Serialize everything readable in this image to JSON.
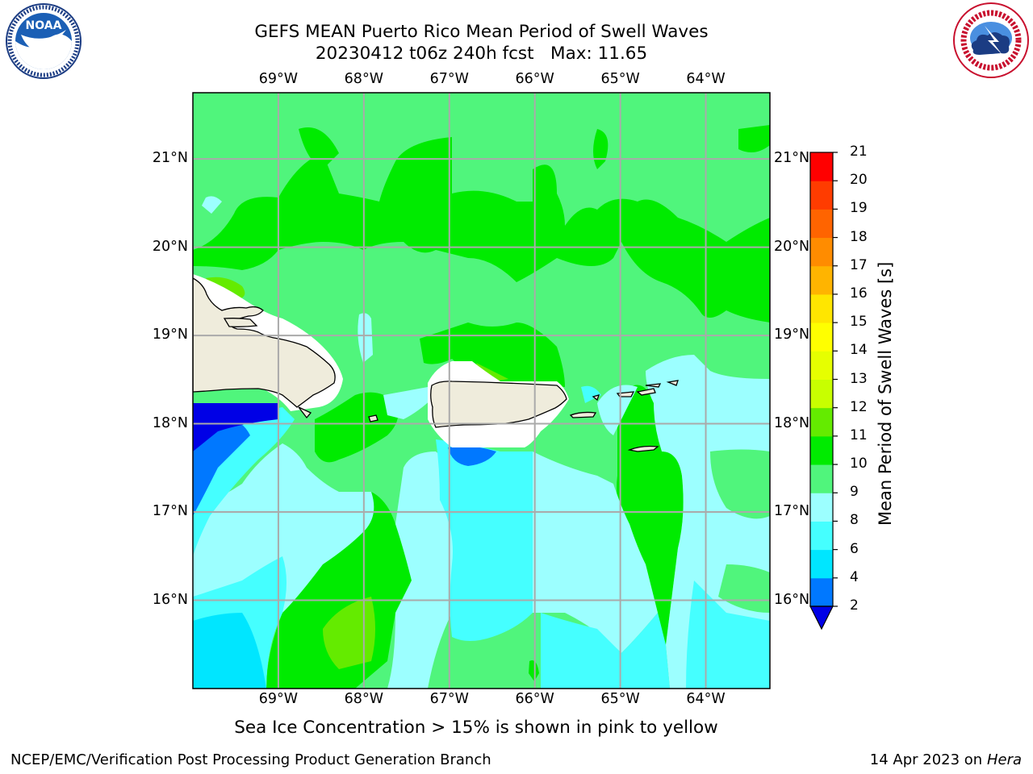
{
  "header": {
    "title_line1": "GEFS MEAN Puerto Rico Mean Period of Swell Waves",
    "title_line2": "20230412 t06z 240h fcst   Max: 11.65"
  },
  "logos": {
    "left": "NOAA",
    "left_ring_text": "NATIONAL OCEANIC AND ATMOSPHERIC ADMINISTRATION · U.S. DEPARTMENT OF COMMERCE",
    "right_ring_text": "NATIONAL WEATHER SERVICE"
  },
  "map": {
    "lon_ticks": [
      "69°W",
      "68°W",
      "67°W",
      "66°W",
      "65°W",
      "64°W"
    ],
    "lat_ticks": [
      "21°N",
      "20°N",
      "19°N",
      "18°N",
      "17°N",
      "16°N"
    ],
    "lon_range": [
      -70.0,
      -63.25
    ],
    "lat_range": [
      15.0,
      21.75
    ],
    "grid": true,
    "land_color": "#efecdc",
    "coastline_color": "#000000"
  },
  "colorbar": {
    "label": "Mean Period of Swell Waves [s]",
    "levels": [
      "2",
      "4",
      "6",
      "8",
      "9",
      "10",
      "11",
      "12",
      "13",
      "14",
      "15",
      "16",
      "17",
      "18",
      "19",
      "20",
      "21"
    ],
    "colors": [
      "#0000e6",
      "#0078ff",
      "#00e6ff",
      "#45ffff",
      "#9cffff",
      "#50f57c",
      "#00eb00",
      "#64eb00",
      "#c8ff00",
      "#e6ff00",
      "#ffff00",
      "#ffe600",
      "#ffb400",
      "#ff8c00",
      "#ff6400",
      "#ff3c00",
      "#ff0000"
    ],
    "extend": "min"
  },
  "footer": {
    "note": "Sea Ice Concentration > 15% is shown in pink to yellow",
    "left": "NCEP/EMC/Verification Post Processing Product Generation Branch",
    "date": "14 Apr 2023 on ",
    "machine": "Hera"
  }
}
